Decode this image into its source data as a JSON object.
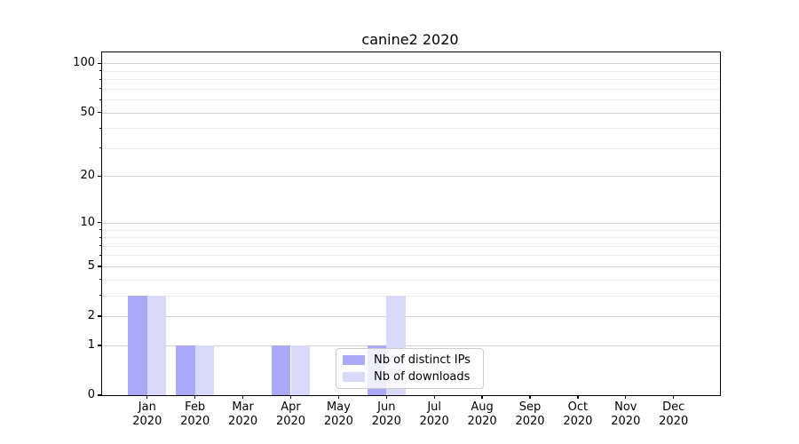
{
  "chart_data": {
    "type": "bar",
    "title": "canine2 2020",
    "categories": [
      "Jan 2020",
      "Feb 2020",
      "Mar 2020",
      "Apr 2020",
      "May 2020",
      "Jun 2020",
      "Jul 2020",
      "Aug 2020",
      "Sep 2020",
      "Oct 2020",
      "Nov 2020",
      "Dec 2020"
    ],
    "series": [
      {
        "name": "Nb of distinct IPs",
        "color": "#a9a9f7",
        "values": [
          3,
          1,
          0,
          1,
          0,
          1,
          0,
          0,
          0,
          0,
          0,
          0
        ]
      },
      {
        "name": "Nb of downloads",
        "color": "#d9d9fa",
        "values": [
          3,
          1,
          0,
          1,
          0,
          3,
          0,
          0,
          0,
          0,
          0,
          0
        ]
      }
    ],
    "xlabel": "",
    "ylabel": "",
    "yscale": "log1p",
    "ylim": [
      0,
      117
    ],
    "yticks": [
      0,
      1,
      2,
      5,
      10,
      20,
      50,
      100
    ],
    "minor_yticks": [
      3,
      4,
      6,
      7,
      8,
      9,
      30,
      40,
      60,
      70,
      80,
      90
    ],
    "grid": "both-horizontal",
    "legend_position": "inside lower-center",
    "colors": {
      "grid_major": "#d2d2d2",
      "grid_minor": "#ebebeb",
      "axis": "#000000",
      "legend_border": "#cccccc",
      "legend_bg": "rgba(255,255,255,0.8)"
    }
  }
}
